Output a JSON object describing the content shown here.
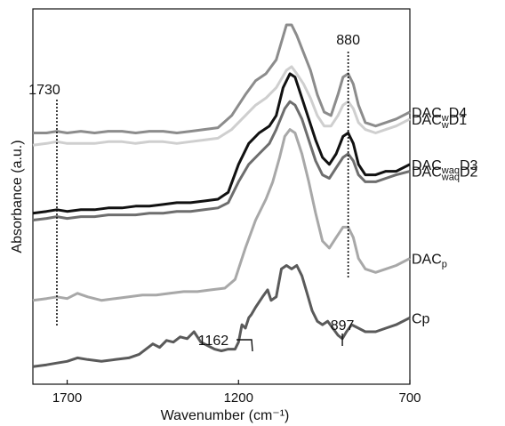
{
  "chart_data": {
    "type": "line",
    "xlabel": "Wavenumber (cm⁻¹)",
    "ylabel": "Absorbance (a.u.)",
    "xlim": [
      1800,
      700
    ],
    "x_ticks": [
      "1700",
      "1200",
      "700"
    ],
    "x_tick_values": [
      1700,
      1200,
      700
    ],
    "annotations": [
      {
        "text": "1730",
        "x": 1730
      },
      {
        "text": "880",
        "x": 880
      },
      {
        "text": "1162",
        "x": 1162
      },
      {
        "text": "897",
        "x": 897
      }
    ],
    "series": [
      {
        "name": "DAC_wD4",
        "label_main": "DAC",
        "label_sub": "w",
        "label_tail": "D4",
        "color": "#8c8c8c",
        "points": [
          [
            1800,
            0.69
          ],
          [
            1760,
            0.69
          ],
          [
            1730,
            0.695
          ],
          [
            1700,
            0.69
          ],
          [
            1660,
            0.695
          ],
          [
            1620,
            0.69
          ],
          [
            1580,
            0.695
          ],
          [
            1540,
            0.695
          ],
          [
            1500,
            0.69
          ],
          [
            1460,
            0.695
          ],
          [
            1420,
            0.695
          ],
          [
            1380,
            0.69
          ],
          [
            1340,
            0.695
          ],
          [
            1300,
            0.7
          ],
          [
            1260,
            0.705
          ],
          [
            1220,
            0.74
          ],
          [
            1180,
            0.8
          ],
          [
            1150,
            0.84
          ],
          [
            1120,
            0.86
          ],
          [
            1090,
            0.9
          ],
          [
            1060,
            1.0
          ],
          [
            1045,
            1.0
          ],
          [
            1030,
            0.97
          ],
          [
            1010,
            0.92
          ],
          [
            990,
            0.87
          ],
          [
            970,
            0.8
          ],
          [
            950,
            0.75
          ],
          [
            930,
            0.74
          ],
          [
            910,
            0.8
          ],
          [
            895,
            0.85
          ],
          [
            880,
            0.86
          ],
          [
            865,
            0.83
          ],
          [
            850,
            0.77
          ],
          [
            830,
            0.72
          ],
          [
            800,
            0.71
          ],
          [
            770,
            0.72
          ],
          [
            740,
            0.73
          ],
          [
            700,
            0.75
          ]
        ]
      },
      {
        "name": "DAC_wD1",
        "label_main": "DAC",
        "label_sub": "w",
        "label_tail": "D1",
        "color": "#cfcfcf",
        "points": [
          [
            1800,
            0.655
          ],
          [
            1760,
            0.66
          ],
          [
            1730,
            0.665
          ],
          [
            1700,
            0.66
          ],
          [
            1660,
            0.66
          ],
          [
            1620,
            0.66
          ],
          [
            1580,
            0.665
          ],
          [
            1540,
            0.665
          ],
          [
            1500,
            0.66
          ],
          [
            1460,
            0.665
          ],
          [
            1420,
            0.665
          ],
          [
            1380,
            0.66
          ],
          [
            1340,
            0.665
          ],
          [
            1300,
            0.67
          ],
          [
            1260,
            0.675
          ],
          [
            1220,
            0.7
          ],
          [
            1180,
            0.74
          ],
          [
            1150,
            0.77
          ],
          [
            1120,
            0.79
          ],
          [
            1090,
            0.82
          ],
          [
            1060,
            0.87
          ],
          [
            1045,
            0.88
          ],
          [
            1030,
            0.86
          ],
          [
            1010,
            0.83
          ],
          [
            990,
            0.79
          ],
          [
            970,
            0.74
          ],
          [
            950,
            0.71
          ],
          [
            930,
            0.71
          ],
          [
            910,
            0.74
          ],
          [
            895,
            0.77
          ],
          [
            880,
            0.78
          ],
          [
            865,
            0.76
          ],
          [
            850,
            0.72
          ],
          [
            830,
            0.7
          ],
          [
            800,
            0.69
          ],
          [
            770,
            0.7
          ],
          [
            740,
            0.71
          ],
          [
            700,
            0.73
          ]
        ]
      },
      {
        "name": "DAC_waqD3",
        "label_main": "DAC",
        "label_sub": "waq",
        "label_tail": "D3",
        "color": "#111111",
        "points": [
          [
            1800,
            0.46
          ],
          [
            1760,
            0.465
          ],
          [
            1730,
            0.47
          ],
          [
            1700,
            0.465
          ],
          [
            1660,
            0.47
          ],
          [
            1620,
            0.47
          ],
          [
            1580,
            0.475
          ],
          [
            1540,
            0.475
          ],
          [
            1500,
            0.48
          ],
          [
            1460,
            0.48
          ],
          [
            1420,
            0.485
          ],
          [
            1380,
            0.49
          ],
          [
            1340,
            0.49
          ],
          [
            1300,
            0.495
          ],
          [
            1260,
            0.5
          ],
          [
            1230,
            0.52
          ],
          [
            1200,
            0.6
          ],
          [
            1170,
            0.66
          ],
          [
            1140,
            0.69
          ],
          [
            1110,
            0.71
          ],
          [
            1090,
            0.74
          ],
          [
            1070,
            0.82
          ],
          [
            1050,
            0.86
          ],
          [
            1035,
            0.85
          ],
          [
            1015,
            0.79
          ],
          [
            995,
            0.73
          ],
          [
            975,
            0.67
          ],
          [
            955,
            0.62
          ],
          [
            935,
            0.6
          ],
          [
            915,
            0.63
          ],
          [
            895,
            0.68
          ],
          [
            880,
            0.69
          ],
          [
            865,
            0.66
          ],
          [
            850,
            0.6
          ],
          [
            830,
            0.57
          ],
          [
            800,
            0.57
          ],
          [
            770,
            0.58
          ],
          [
            740,
            0.58
          ],
          [
            700,
            0.6
          ]
        ]
      },
      {
        "name": "DAC_waqD2",
        "label_main": "DAC",
        "label_sub": "waq",
        "label_tail": "D2",
        "color": "#6e6e6e",
        "points": [
          [
            1800,
            0.44
          ],
          [
            1760,
            0.445
          ],
          [
            1730,
            0.45
          ],
          [
            1700,
            0.445
          ],
          [
            1660,
            0.45
          ],
          [
            1620,
            0.45
          ],
          [
            1580,
            0.455
          ],
          [
            1540,
            0.455
          ],
          [
            1500,
            0.455
          ],
          [
            1460,
            0.46
          ],
          [
            1420,
            0.46
          ],
          [
            1380,
            0.465
          ],
          [
            1340,
            0.465
          ],
          [
            1300,
            0.47
          ],
          [
            1260,
            0.475
          ],
          [
            1230,
            0.49
          ],
          [
            1200,
            0.55
          ],
          [
            1170,
            0.6
          ],
          [
            1140,
            0.63
          ],
          [
            1110,
            0.66
          ],
          [
            1090,
            0.7
          ],
          [
            1065,
            0.76
          ],
          [
            1050,
            0.78
          ],
          [
            1035,
            0.77
          ],
          [
            1015,
            0.73
          ],
          [
            995,
            0.67
          ],
          [
            975,
            0.61
          ],
          [
            955,
            0.57
          ],
          [
            935,
            0.56
          ],
          [
            915,
            0.59
          ],
          [
            895,
            0.62
          ],
          [
            880,
            0.63
          ],
          [
            865,
            0.61
          ],
          [
            850,
            0.57
          ],
          [
            830,
            0.55
          ],
          [
            800,
            0.55
          ],
          [
            770,
            0.56
          ],
          [
            740,
            0.57
          ],
          [
            700,
            0.58
          ]
        ]
      },
      {
        "name": "DAC_p",
        "label_main": "DAC",
        "label_sub": "p",
        "label_tail": "",
        "color": "#a8a8a8",
        "points": [
          [
            1800,
            0.21
          ],
          [
            1760,
            0.215
          ],
          [
            1730,
            0.22
          ],
          [
            1700,
            0.215
          ],
          [
            1670,
            0.23
          ],
          [
            1640,
            0.22
          ],
          [
            1600,
            0.21
          ],
          [
            1560,
            0.215
          ],
          [
            1520,
            0.22
          ],
          [
            1480,
            0.225
          ],
          [
            1440,
            0.225
          ],
          [
            1400,
            0.23
          ],
          [
            1360,
            0.235
          ],
          [
            1320,
            0.235
          ],
          [
            1280,
            0.24
          ],
          [
            1240,
            0.245
          ],
          [
            1210,
            0.27
          ],
          [
            1180,
            0.36
          ],
          [
            1150,
            0.44
          ],
          [
            1120,
            0.5
          ],
          [
            1100,
            0.55
          ],
          [
            1080,
            0.62
          ],
          [
            1065,
            0.68
          ],
          [
            1050,
            0.7
          ],
          [
            1035,
            0.69
          ],
          [
            1015,
            0.63
          ],
          [
            995,
            0.55
          ],
          [
            975,
            0.46
          ],
          [
            955,
            0.38
          ],
          [
            935,
            0.36
          ],
          [
            915,
            0.39
          ],
          [
            895,
            0.42
          ],
          [
            880,
            0.42
          ],
          [
            865,
            0.39
          ],
          [
            850,
            0.33
          ],
          [
            830,
            0.3
          ],
          [
            800,
            0.29
          ],
          [
            770,
            0.3
          ],
          [
            740,
            0.31
          ],
          [
            700,
            0.33
          ]
        ]
      },
      {
        "name": "Cp",
        "label_main": "Cp",
        "label_sub": "",
        "label_tail": "",
        "color": "#5a5a5a",
        "points": [
          [
            1800,
            0.02
          ],
          [
            1760,
            0.025
          ],
          [
            1730,
            0.03
          ],
          [
            1700,
            0.035
          ],
          [
            1670,
            0.045
          ],
          [
            1640,
            0.04
          ],
          [
            1600,
            0.035
          ],
          [
            1560,
            0.04
          ],
          [
            1520,
            0.045
          ],
          [
            1490,
            0.055
          ],
          [
            1470,
            0.07
          ],
          [
            1450,
            0.085
          ],
          [
            1430,
            0.075
          ],
          [
            1410,
            0.095
          ],
          [
            1390,
            0.09
          ],
          [
            1370,
            0.105
          ],
          [
            1350,
            0.1
          ],
          [
            1330,
            0.12
          ],
          [
            1310,
            0.09
          ],
          [
            1290,
            0.08
          ],
          [
            1270,
            0.07
          ],
          [
            1250,
            0.065
          ],
          [
            1230,
            0.07
          ],
          [
            1210,
            0.07
          ],
          [
            1200,
            0.09
          ],
          [
            1190,
            0.14
          ],
          [
            1180,
            0.13
          ],
          [
            1170,
            0.16
          ],
          [
            1162,
            0.17
          ],
          [
            1150,
            0.19
          ],
          [
            1130,
            0.22
          ],
          [
            1115,
            0.24
          ],
          [
            1105,
            0.21
          ],
          [
            1090,
            0.22
          ],
          [
            1075,
            0.3
          ],
          [
            1060,
            0.31
          ],
          [
            1045,
            0.3
          ],
          [
            1030,
            0.31
          ],
          [
            1015,
            0.28
          ],
          [
            1000,
            0.23
          ],
          [
            985,
            0.18
          ],
          [
            970,
            0.15
          ],
          [
            955,
            0.14
          ],
          [
            940,
            0.15
          ],
          [
            925,
            0.13
          ],
          [
            910,
            0.11
          ],
          [
            897,
            0.1
          ],
          [
            885,
            0.12
          ],
          [
            870,
            0.14
          ],
          [
            850,
            0.13
          ],
          [
            830,
            0.12
          ],
          [
            800,
            0.12
          ],
          [
            770,
            0.13
          ],
          [
            740,
            0.14
          ],
          [
            700,
            0.16
          ]
        ]
      }
    ]
  }
}
